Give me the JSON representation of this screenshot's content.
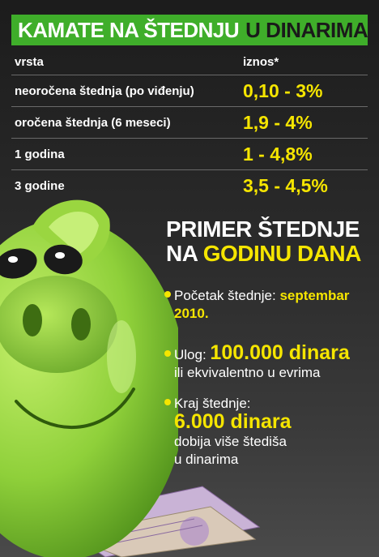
{
  "header": {
    "title_main": "KAMATE NA ŠTEDNJU",
    "title_accent": "U DINARIMA"
  },
  "table": {
    "col_type": "vrsta",
    "col_value": "iznos*",
    "rows": [
      {
        "type": "neoročena štednja (po viđenju)",
        "value": "0,10 - 3%"
      },
      {
        "type": "oročena štednja (6 meseci)",
        "value": "1,9 - 4%"
      },
      {
        "type": "1 godina",
        "value": "1 - 4,8%"
      },
      {
        "type": "3 godine",
        "value": "3,5 - 4,5%"
      }
    ]
  },
  "example": {
    "title_line1": "PRIMER ŠTEDNJE",
    "title_line2_white": "NA",
    "title_line2_yellow": "GODINU DANA",
    "start_label": "Početak štednje:",
    "start_value_a": "septembar",
    "start_value_b": "2010.",
    "deposit_label": "Ulog:",
    "deposit_value": "100.000 dinara",
    "deposit_note": "ili ekvivalentno u evrima",
    "end_label": "Kraj štednje:",
    "end_value": "6.000 dinara",
    "end_note_1": "dobija više štediša",
    "end_note_2": "u dinarima"
  },
  "colors": {
    "green": "#3fae2a",
    "yellow": "#f5e500",
    "pig": "#8fd03a"
  }
}
